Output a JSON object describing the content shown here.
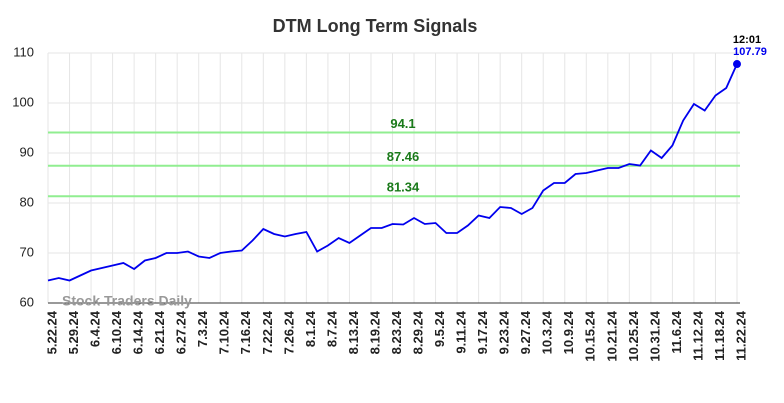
{
  "chart_data": {
    "type": "line",
    "title": "DTM Long Term Signals",
    "categories": [
      "5.22.24",
      null,
      "5.29.24",
      null,
      "6.4.24",
      null,
      "6.10.24",
      null,
      "6.14.24",
      null,
      "6.21.24",
      null,
      "6.27.24",
      null,
      "7.3.24",
      null,
      "7.10.24",
      null,
      "7.16.24",
      null,
      "7.22.24",
      null,
      "7.26.24",
      null,
      "8.1.24",
      null,
      "8.7.24",
      null,
      "8.13.24",
      null,
      "8.19.24",
      null,
      "8.23.24",
      null,
      "8.29.24",
      null,
      "9.5.24",
      null,
      "9.11.24",
      null,
      "9.17.24",
      null,
      "9.23.24",
      null,
      "9.27.24",
      null,
      "10.3.24",
      null,
      "10.9.24",
      null,
      "10.15.24",
      null,
      "10.21.24",
      null,
      "10.25.24",
      null,
      "10.31.24",
      null,
      "11.6.24",
      null,
      "11.12.24",
      null,
      "11.18.24",
      null,
      "11.22.24"
    ],
    "series": [
      {
        "name": "DTM",
        "color": "#0000ee",
        "values": [
          64.5,
          65,
          64.5,
          65.5,
          66.5,
          67,
          67.5,
          68,
          66.8,
          68.5,
          69,
          70,
          70,
          70.3,
          69.3,
          69,
          70,
          70.3,
          70.5,
          72.5,
          74.8,
          73.8,
          73.3,
          73.8,
          74.2,
          70.3,
          71.5,
          73,
          72,
          73.5,
          75,
          75,
          75.8,
          75.7,
          77,
          75.8,
          76,
          74,
          74,
          75.5,
          77.5,
          77,
          79.2,
          79,
          77.8,
          79,
          82.5,
          84,
          84,
          85.8,
          86,
          86.5,
          87,
          87,
          87.8,
          87.5,
          90.5,
          89,
          91.5,
          96.5,
          99.8,
          98.5,
          101.5,
          103,
          107.79
        ]
      }
    ],
    "signals": [
      {
        "value": 94.1,
        "color": "#90ee90"
      },
      {
        "value": 87.46,
        "color": "#90ee90"
      },
      {
        "value": 81.34,
        "color": "#90ee90"
      }
    ],
    "last_time": "12:01",
    "watermark": "Stock Traders Daily",
    "ylim": [
      60,
      110
    ],
    "yticks": [
      60,
      70,
      80,
      90,
      100,
      110
    ],
    "grid": true
  }
}
